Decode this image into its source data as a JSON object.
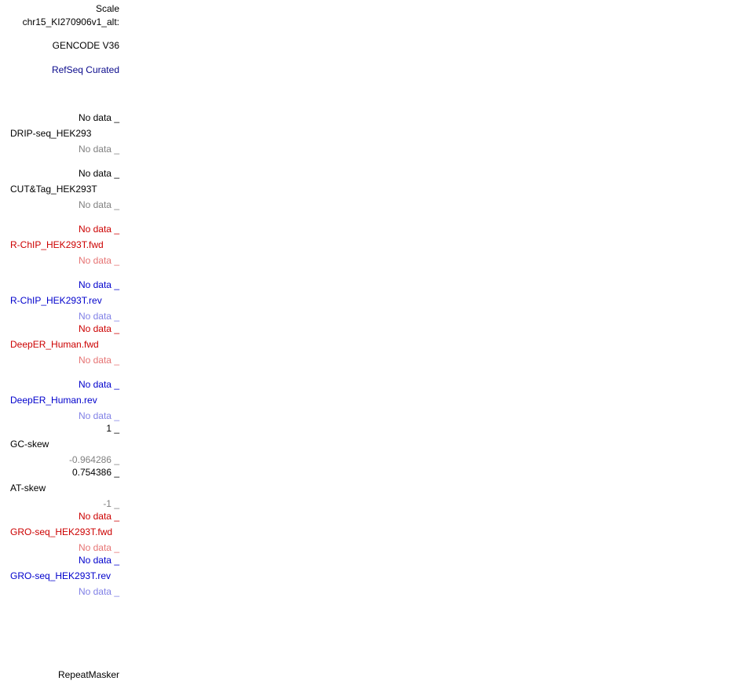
{
  "header": {
    "scale_label": "Scale",
    "chrom_label": "chr15_KI270906v1_alt:"
  },
  "tracks": {
    "gencode": "GENCODE V36",
    "refseq": "RefSeq Curated",
    "drip": {
      "top": "No data _",
      "name": "DRIP-seq_HEK293",
      "bottom": "No data _"
    },
    "cuttag": {
      "top": "No data _",
      "name": "CUT&Tag_HEK293T",
      "bottom": "No data _"
    },
    "rchip_fwd": {
      "top": "No data _",
      "name": "R-ChIP_HEK293T.fwd",
      "bottom": "No data _"
    },
    "rchip_rev": {
      "top": "No data _",
      "name": "R-ChIP_HEK293T.rev",
      "bottom": "No data _"
    },
    "deeper_fwd": {
      "top": "No data _",
      "name": "DeepER_Human.fwd",
      "bottom": "No data _"
    },
    "deeper_rev": {
      "top": "No data _",
      "name": "DeepER_Human.rev",
      "bottom": "No data _"
    },
    "gcskew": {
      "top": "1 _",
      "name": "GC-skew",
      "bottom": "-0.964286 _"
    },
    "atskew": {
      "top": "0.754386 _",
      "name": "AT-skew",
      "bottom": "-1 _"
    },
    "groseq_fwd": {
      "top": "No data _",
      "name": "GRO-seq_HEK293T.fwd",
      "bottom": "No data _"
    },
    "groseq_rev": {
      "top": "No data _",
      "name": "GRO-seq_HEK293T.rev",
      "bottom": "No data _"
    },
    "repeatmasker": "RepeatMasker"
  },
  "colors": {
    "black": "#000000",
    "gray": "#808080",
    "navy": "#0a0a8c",
    "red": "#cc0000",
    "light_red": "#e67373",
    "blue": "#0000cc",
    "light_blue": "#8080e6"
  }
}
